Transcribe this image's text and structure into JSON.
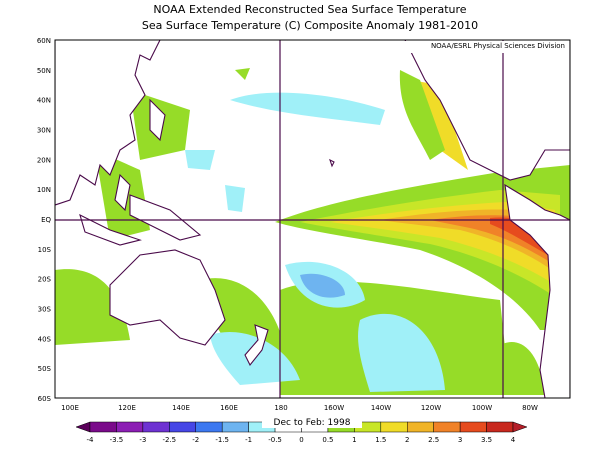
{
  "header": {
    "title": "NOAA Extended Reconstructed Sea Surface Temperature",
    "subtitle": "Sea Surface Temperature (C) Composite Anomaly 1981-2010"
  },
  "attribution": "NOAA/ESRL Physical Sciences Division",
  "map": {
    "lat_labels": [
      "60N",
      "50N",
      "40N",
      "30N",
      "20N",
      "10N",
      "EQ",
      "10S",
      "20S",
      "30S",
      "40S",
      "50S",
      "60S"
    ],
    "lon_labels": [
      "100E",
      "120E",
      "140E",
      "160E",
      "180",
      "160W",
      "140W",
      "120W",
      "100W",
      "80W"
    ]
  },
  "colorbar": {
    "labels": [
      "-4",
      "-3.5",
      "-3",
      "-2.5",
      "-2",
      "-1.5",
      "-1",
      "-0.5",
      "0",
      "0.5",
      "1",
      "1.5",
      "2",
      "2.5",
      "3",
      "3.5",
      "4"
    ],
    "colors": [
      "#5a005a",
      "#7a0a8a",
      "#8c1eb4",
      "#6e32d2",
      "#4646e6",
      "#3c78f0",
      "#6eb4f0",
      "#a0f0f8",
      "#ffffff",
      "#ffffff",
      "#96dc28",
      "#c8e628",
      "#f0dc28",
      "#f0b428",
      "#f08228",
      "#e64b1e",
      "#c8281e",
      "#b41e28"
    ]
  },
  "period": "Dec to Feb: 1998"
}
